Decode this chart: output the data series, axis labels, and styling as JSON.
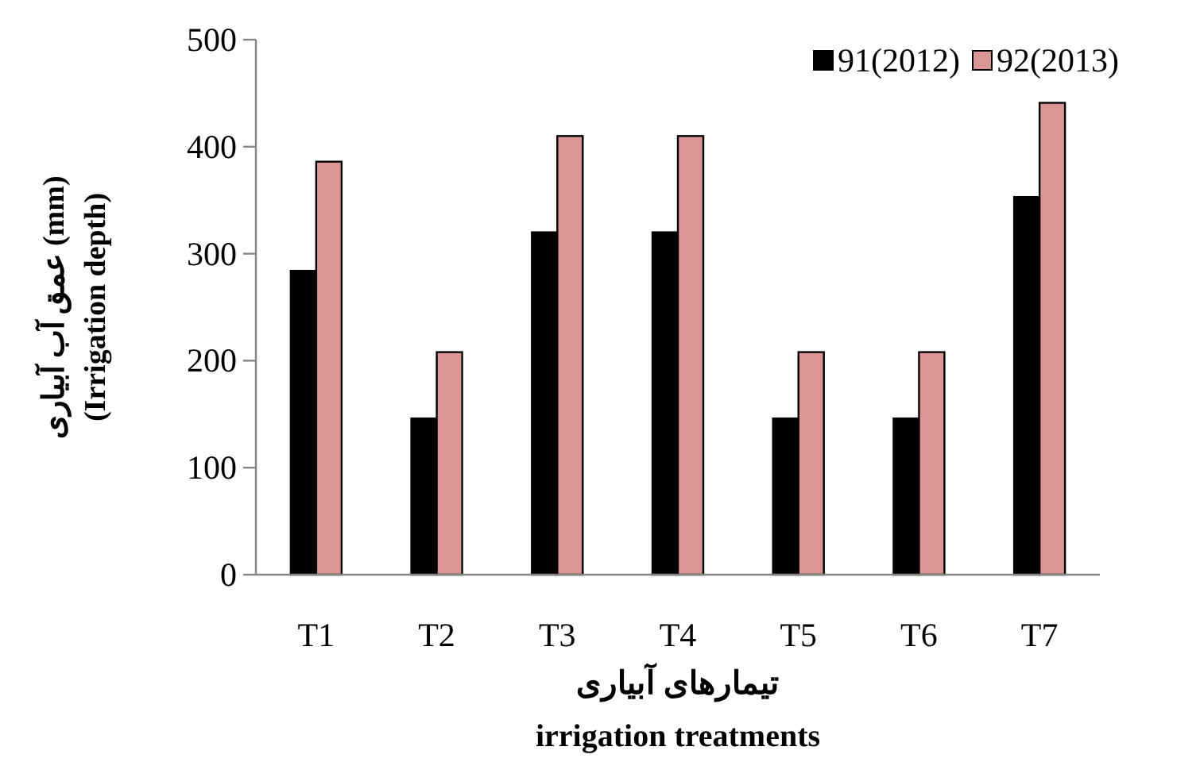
{
  "chart_data": {
    "type": "bar",
    "xlabel": "تیمارهای آبیاری\nirrigation treatments",
    "ylabel": "عمق آب آبیاری (mm)\n(Irrigation depth)",
    "categories": [
      "T1",
      "T2",
      "T3",
      "T4",
      "T5",
      "T6",
      "T7"
    ],
    "series": [
      {
        "name": "91(2012)",
        "color": "#000000",
        "values": [
          284,
          146,
          320,
          320,
          146,
          146,
          353
        ]
      },
      {
        "name": "92(2013)",
        "color": "#d99694",
        "values": [
          386,
          208,
          410,
          410,
          208,
          208,
          441
        ]
      }
    ],
    "ylim": [
      0,
      500
    ],
    "yticks": [
      0,
      100,
      200,
      300,
      400,
      500
    ],
    "grid": false,
    "legend": "top right"
  }
}
